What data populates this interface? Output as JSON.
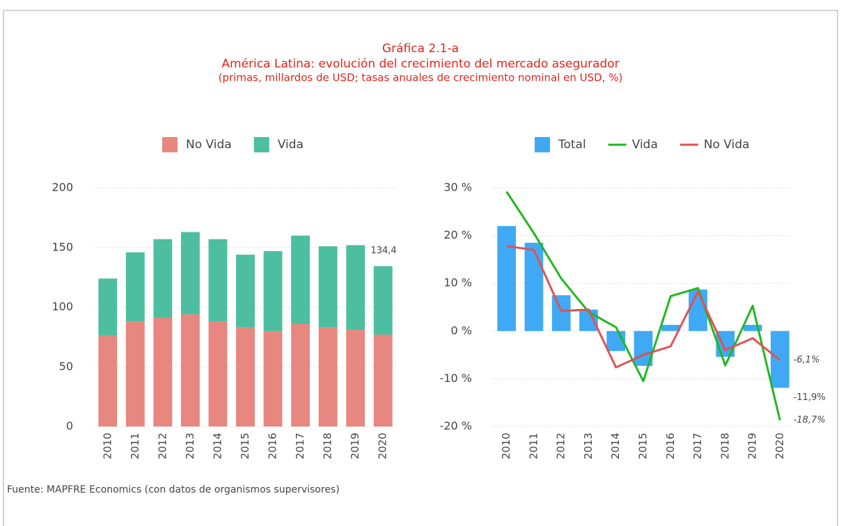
{
  "header": {
    "title": "Gráfica 2.1-a",
    "subtitle": "América Latina: evolución del crecimiento del mercado asegurador",
    "description": "(primas, millardos de USD; tasas anuales de crecimiento nominal en USD, %)"
  },
  "source": "Fuente: MAPFRE Economics (con datos de organismos supervisores)",
  "chart_data": [
    {
      "type": "stacked_bar",
      "legend": "top",
      "grid": true,
      "categories": [
        "2010",
        "2011",
        "2012",
        "2013",
        "2014",
        "2015",
        "2016",
        "2017",
        "2018",
        "2019",
        "2020"
      ],
      "series": [
        {
          "name": "No Vida",
          "color": "#e8877f",
          "type": "bar",
          "values": [
            76,
            88,
            91,
            94,
            88,
            83,
            80,
            86,
            83,
            81,
            77
          ]
        },
        {
          "name": "Vida",
          "color": "#4dbfa0",
          "type": "bar",
          "values": [
            48,
            58,
            66,
            69,
            69,
            61,
            67,
            74,
            68,
            71,
            57.4
          ]
        }
      ],
      "annotations": [
        {
          "x": "2020",
          "y": 134.4,
          "label": "134,4"
        }
      ],
      "ylim": [
        0,
        200
      ],
      "yticks": [
        0,
        50,
        100,
        150,
        200
      ]
    },
    {
      "type": "combo",
      "legend": "top",
      "grid": true,
      "categories": [
        "2010",
        "2011",
        "2012",
        "2013",
        "2014",
        "2015",
        "2016",
        "2017",
        "2018",
        "2019",
        "2020"
      ],
      "series": [
        {
          "name": "Total",
          "color": "#3fa9f5",
          "type": "bar",
          "values": [
            22,
            18.5,
            7.5,
            4.5,
            -4.2,
            -7.3,
            1.3,
            8.7,
            -5.4,
            1.3,
            -11.9
          ],
          "value_labels": [
            null,
            null,
            null,
            null,
            null,
            null,
            null,
            null,
            null,
            null,
            "-11,9%"
          ]
        },
        {
          "name": "Vida",
          "color": "#1fb81f",
          "type": "line",
          "values": [
            29.2,
            20.5,
            11,
            4,
            0.8,
            -10.5,
            7.3,
            9,
            -7.2,
            5.3,
            -18.7
          ],
          "value_labels": [
            null,
            null,
            null,
            null,
            null,
            null,
            null,
            null,
            null,
            null,
            "-18,7%"
          ]
        },
        {
          "name": "No Vida",
          "color": "#e05252",
          "type": "line",
          "values": [
            17.8,
            17,
            4.2,
            4.5,
            -7.6,
            -5,
            -3.2,
            8.3,
            -4,
            -1.5,
            -6.1
          ],
          "value_labels": [
            null,
            null,
            null,
            null,
            null,
            null,
            null,
            null,
            null,
            null,
            "-6,1%"
          ]
        }
      ],
      "ylim": [
        -20,
        30
      ],
      "yticks": [
        {
          "value": -20,
          "label": "-20 %"
        },
        {
          "value": -10,
          "label": "-10 %"
        },
        {
          "value": 0,
          "label": "0 %"
        },
        {
          "value": 10,
          "label": "10 %"
        },
        {
          "value": 20,
          "label": "20 %"
        },
        {
          "value": 30,
          "label": "30 %"
        }
      ]
    }
  ]
}
